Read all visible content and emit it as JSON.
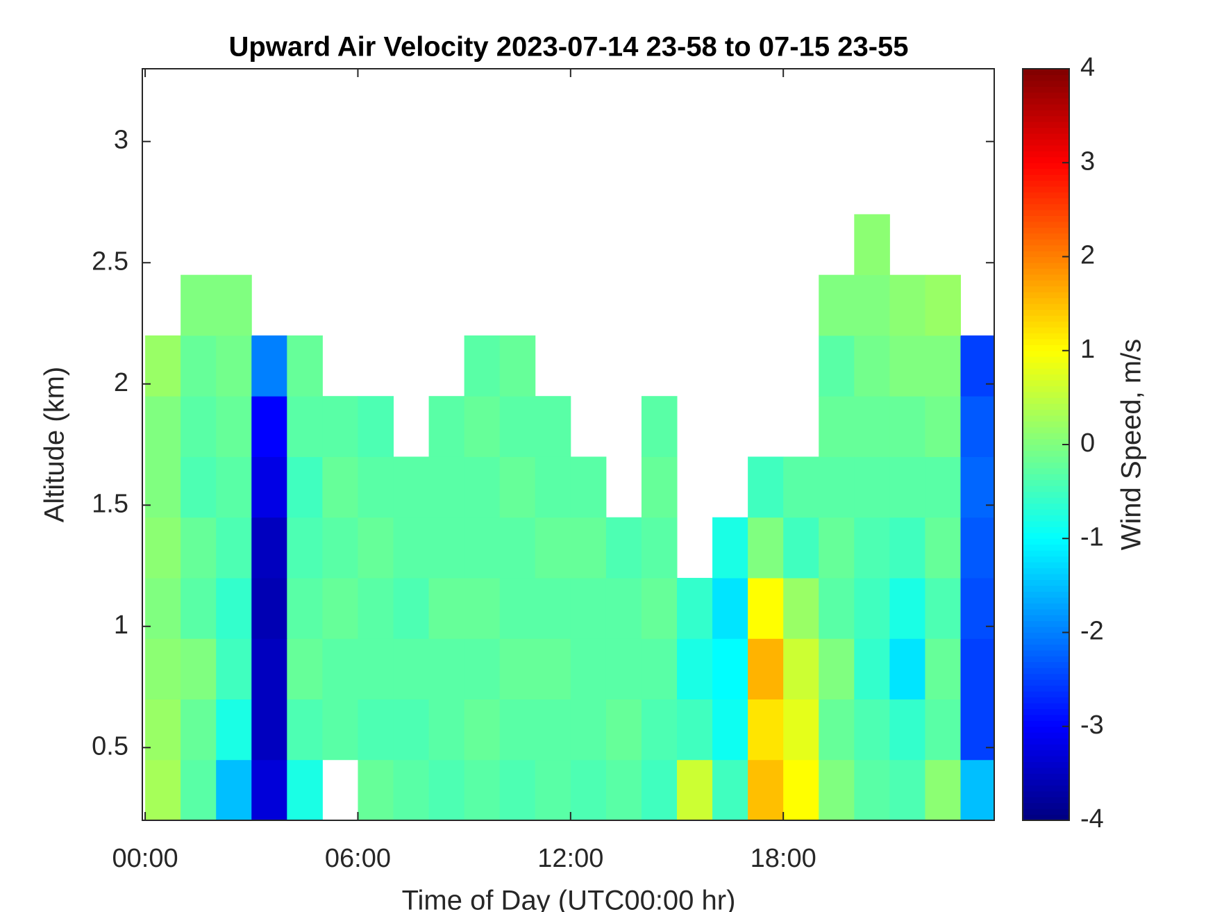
{
  "chart_data": {
    "type": "heatmap",
    "title": "Upward Air Velocity 2023-07-14 23-58 to 07-15 23-55",
    "xlabel": "Time of Day (UTC00:00 hr)",
    "ylabel": "Altitude (km)",
    "xlim": [
      -0.08,
      23.95
    ],
    "ylim": [
      0.2,
      3.3
    ],
    "xticks": [
      {
        "value": 0,
        "label": "00:00"
      },
      {
        "value": 6,
        "label": "06:00"
      },
      {
        "value": 12,
        "label": "12:00"
      },
      {
        "value": 18,
        "label": "18:00"
      }
    ],
    "yticks": [
      0.5,
      1,
      1.5,
      2,
      2.5,
      3
    ],
    "x_bins": [
      0,
      1,
      2,
      3,
      4,
      5,
      6,
      7,
      8,
      9,
      10,
      11,
      12,
      13,
      14,
      15,
      16,
      17,
      18,
      19,
      20,
      21,
      22,
      23,
      24
    ],
    "y_bins": [
      0.2,
      0.45,
      0.7,
      0.95,
      1.2,
      1.45,
      1.7,
      1.95,
      2.2,
      2.45,
      2.7
    ],
    "z": [
      [
        0.3,
        -0.3,
        -1.5,
        -3.3,
        -0.8,
        null,
        -0.2,
        -0.3,
        -0.4,
        -0.3,
        -0.4,
        -0.3,
        -0.4,
        -0.3,
        -0.5,
        0.6,
        -0.5,
        1.5,
        1.0,
        0,
        -0.3,
        -0.4,
        0.1,
        -1.5
      ],
      [
        0.2,
        -0.2,
        -0.8,
        -3.5,
        -0.4,
        -0.3,
        -0.4,
        -0.4,
        -0.3,
        -0.2,
        -0.3,
        -0.3,
        -0.3,
        -0.2,
        -0.4,
        -0.5,
        -0.9,
        1.2,
        0.8,
        -0.2,
        -0.4,
        -0.6,
        -0.3,
        -2.5
      ],
      [
        0.1,
        0,
        -0.5,
        -3.5,
        -0.2,
        -0.3,
        -0.3,
        -0.3,
        -0.3,
        -0.3,
        -0.2,
        -0.2,
        -0.3,
        -0.3,
        -0.3,
        -0.8,
        -1,
        1.6,
        0.6,
        0,
        -0.6,
        -1.2,
        -0.2,
        -2.5
      ],
      [
        0,
        -0.3,
        -0.6,
        -3.6,
        -0.3,
        -0.2,
        -0.3,
        -0.4,
        -0.2,
        -0.2,
        -0.3,
        -0.3,
        -0.3,
        -0.3,
        -0.2,
        -0.6,
        -1.2,
        1,
        0.2,
        -0.3,
        -0.5,
        -0.8,
        -0.4,
        -2.4
      ],
      [
        0.1,
        -0.2,
        -0.4,
        -3.5,
        -0.4,
        -0.3,
        -0.2,
        -0.3,
        -0.3,
        -0.3,
        -0.3,
        -0.2,
        -0.2,
        -0.4,
        -0.3,
        null,
        -0.8,
        0,
        -0.5,
        -0.2,
        -0.4,
        -0.5,
        -0.2,
        -2.3
      ],
      [
        0,
        -0.4,
        -0.3,
        -3.2,
        -0.5,
        -0.2,
        -0.3,
        -0.3,
        -0.3,
        -0.3,
        -0.2,
        -0.3,
        -0.3,
        null,
        -0.2,
        null,
        null,
        -0.5,
        -0.3,
        -0.3,
        -0.3,
        -0.3,
        -0.3,
        -2.2
      ],
      [
        0,
        -0.3,
        -0.2,
        -3,
        -0.3,
        -0.3,
        -0.4,
        null,
        -0.3,
        -0.2,
        -0.3,
        -0.3,
        null,
        null,
        -0.3,
        null,
        null,
        null,
        null,
        -0.2,
        -0.2,
        -0.2,
        -0.1,
        -2.3
      ],
      [
        0.2,
        -0.2,
        -0.1,
        -2,
        -0.2,
        null,
        null,
        null,
        null,
        -0.3,
        -0.2,
        null,
        null,
        null,
        null,
        null,
        null,
        null,
        null,
        -0.3,
        -0.1,
        0,
        0,
        -2.5
      ],
      [
        null,
        0,
        0,
        null,
        null,
        null,
        null,
        null,
        null,
        null,
        null,
        null,
        null,
        null,
        null,
        null,
        null,
        null,
        null,
        0,
        0,
        0.1,
        0.2,
        null
      ],
      [
        null,
        null,
        null,
        null,
        null,
        null,
        null,
        null,
        null,
        null,
        null,
        null,
        null,
        null,
        null,
        null,
        null,
        null,
        null,
        null,
        0.1,
        null,
        null,
        null
      ]
    ],
    "colormap": "jet",
    "colorbar": {
      "label": "Wind Speed, m/s",
      "clim": [
        -4,
        4
      ],
      "ticks": [
        -4,
        -3,
        -2,
        -1,
        0,
        1,
        2,
        3,
        4
      ]
    }
  }
}
